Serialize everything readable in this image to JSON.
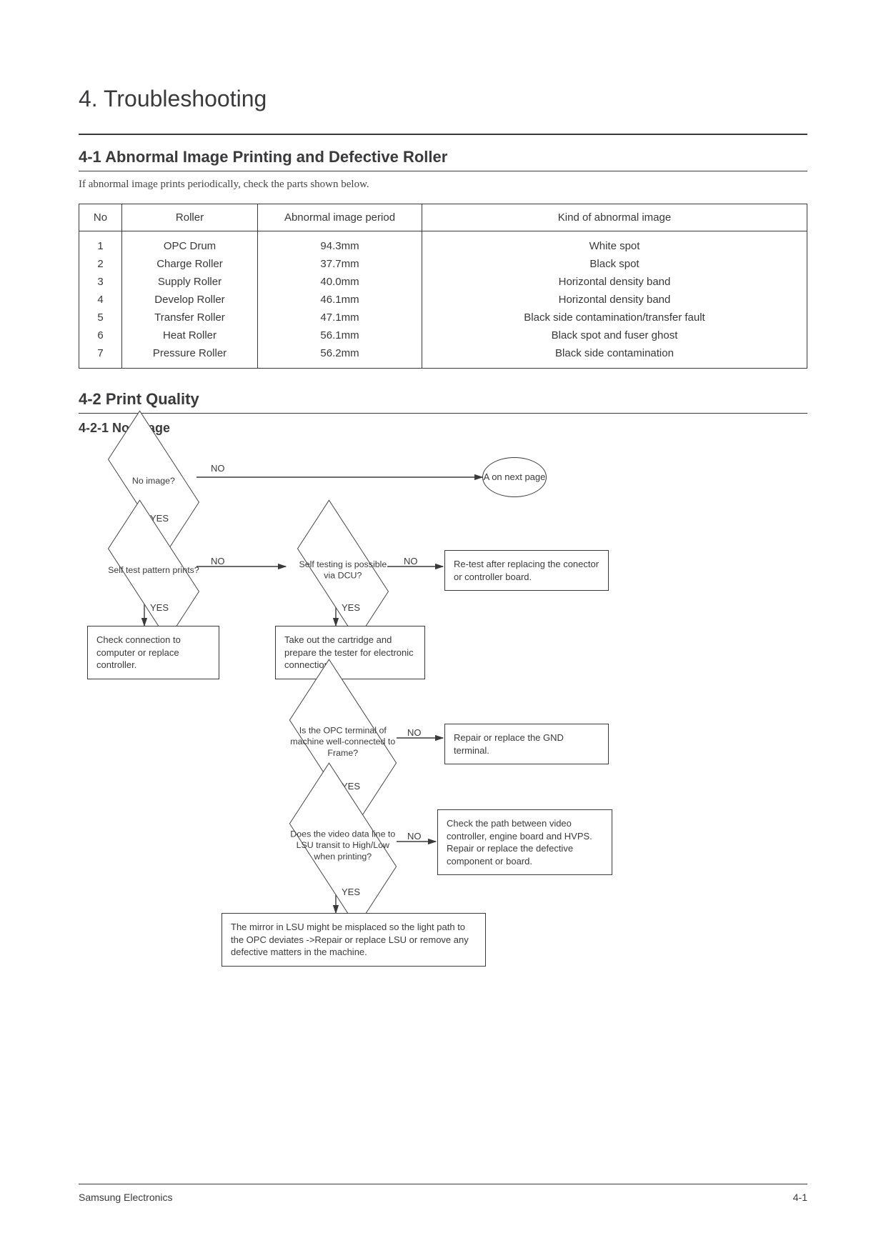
{
  "page_title": "4.  Troubleshooting",
  "section41": {
    "heading": "4-1  Abnormal Image Printing and Defective Roller",
    "intro": "If abnormal image prints periodically, check the parts shown below.",
    "table": {
      "columns": [
        "No",
        "Roller",
        "Abnormal image period",
        "Kind of abnormal image"
      ],
      "rows": [
        [
          "1",
          "OPC Drum",
          "94.3mm",
          "White spot"
        ],
        [
          "2",
          "Charge Roller",
          "37.7mm",
          "Black spot"
        ],
        [
          "3",
          "Supply Roller",
          "40.0mm",
          "Horizontal density band"
        ],
        [
          "4",
          "Develop Roller",
          "46.1mm",
          "Horizontal density band"
        ],
        [
          "5",
          "Transfer Roller",
          "47.1mm",
          "Black side contamination/transfer fault"
        ],
        [
          "6",
          "Heat Roller",
          "56.1mm",
          "Black spot and fuser ghost"
        ],
        [
          "7",
          "Pressure Roller",
          "56.2mm",
          "Black side contamination"
        ]
      ]
    }
  },
  "section42": {
    "heading": "4-2  Print Quality"
  },
  "section421": {
    "heading": "4-2-1  No Image",
    "flow": {
      "d1": "No image?",
      "d2": "Self  test pattern prints?",
      "d3": "Self  testing is possible via DCU?",
      "d4": "Is the OPC terminal of machine well-connected to Frame?",
      "d5": "Does the video data line to LSU transit to High/Low when printing?",
      "r1": "Check connection to computer or  replace controller.",
      "r2": "Re-test after replacing the conector or controller board.",
      "r3": "Take out the cartridge and prepare the tester for electronic connection.",
      "r4": "Repair or replace the GND terminal.",
      "r5": "Check the path between video controller, engine board and HVPS. Repair or replace the defective component or board.",
      "r6": "The mirror in LSU might be misplaced so the light path to the OPC deviates ->Repair or replace LSU or  remove any defective matters in the machine.",
      "c1": "A on next page",
      "labels": {
        "yes": "YES",
        "no": "NO"
      }
    }
  },
  "footer": {
    "left": "Samsung Electronics",
    "right": "4-1"
  },
  "colors": {
    "text": "#38383a",
    "border": "#3a3a3c",
    "bg": "#ffffff"
  }
}
